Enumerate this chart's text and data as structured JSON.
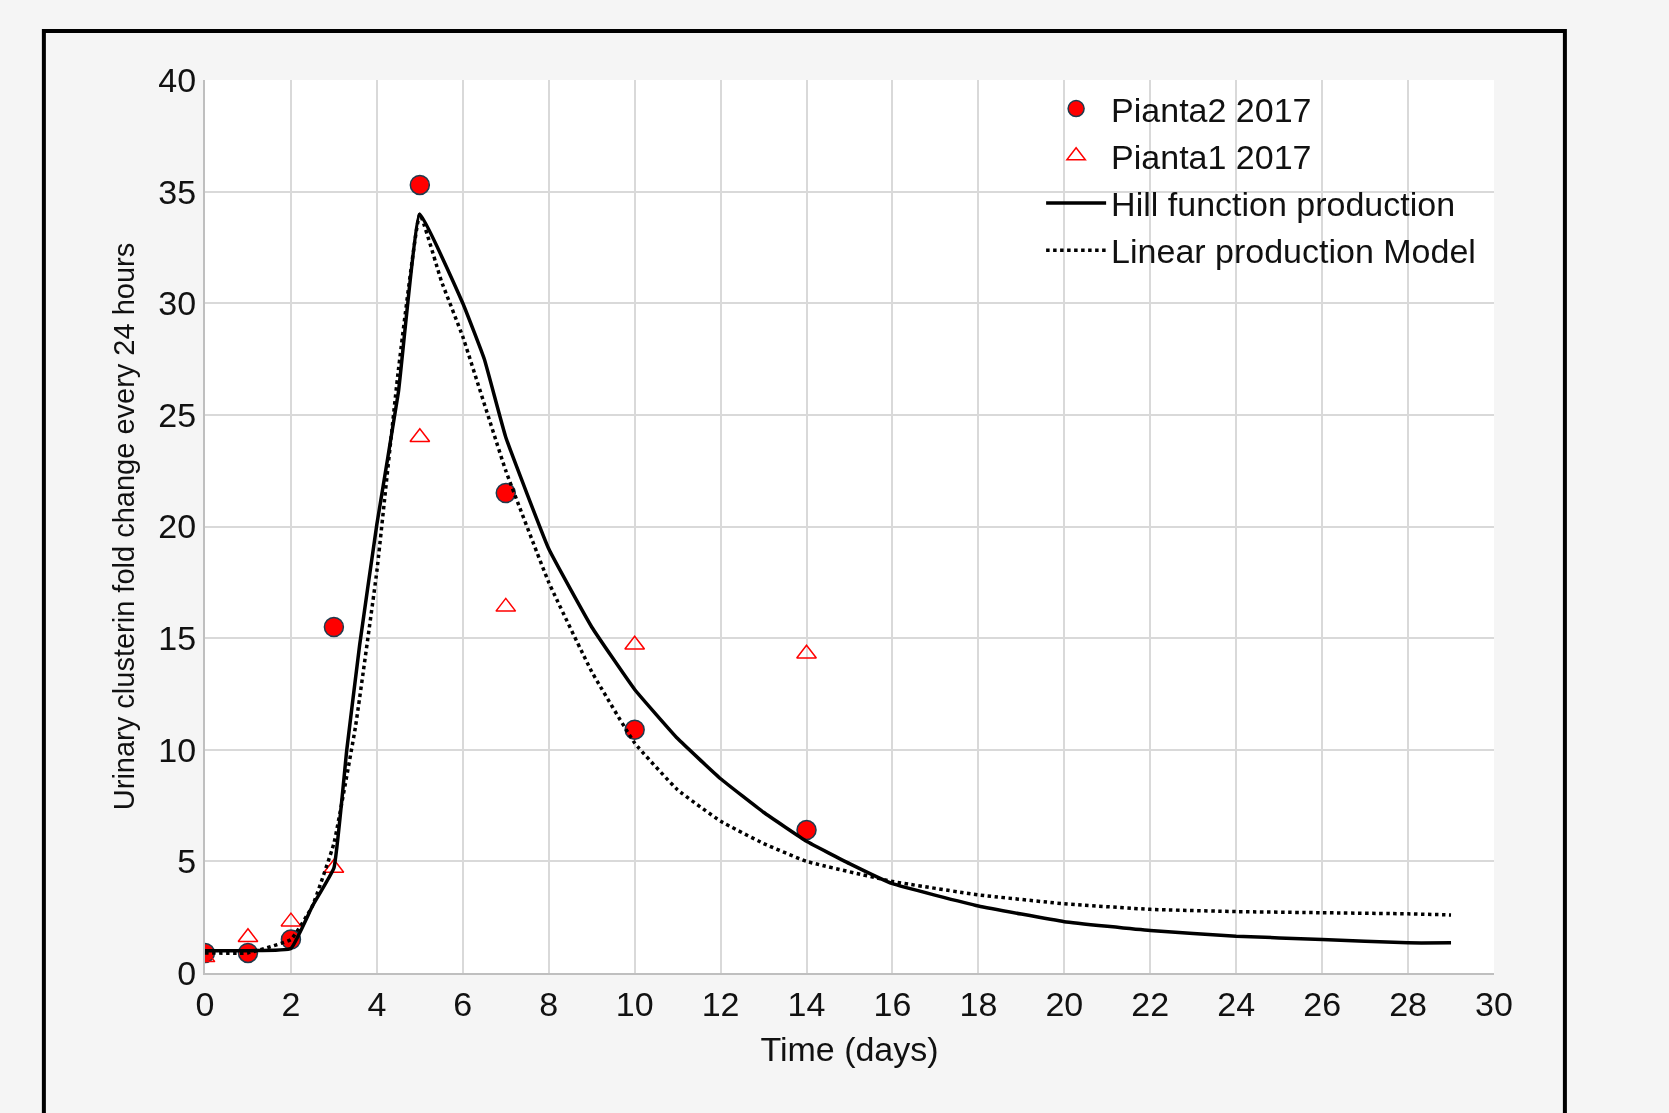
{
  "chart_data": {
    "type": "scatter",
    "xlabel": "Time (days)",
    "ylabel": "Urinary clusterin fold change every 24 hours",
    "xlim": [
      0,
      30
    ],
    "xticks": [
      0,
      2,
      4,
      6,
      8,
      10,
      12,
      14,
      16,
      18,
      20,
      22,
      24,
      26,
      28,
      30
    ],
    "ylim": [
      0,
      40
    ],
    "yticks": [
      0,
      5,
      10,
      15,
      20,
      25,
      30,
      35,
      40
    ],
    "grid": true,
    "legend": "top right",
    "series": [
      {
        "name": "Pianta2 2017",
        "marker": "circle",
        "color": "#ff0000",
        "x": [
          0,
          1,
          2,
          3,
          5,
          7,
          10,
          14
        ],
        "values": [
          0.9,
          0.9,
          1.5,
          15.5,
          35.3,
          21.5,
          10.9,
          6.4
        ]
      },
      {
        "name": "Pianta1 2017",
        "marker": "triangle",
        "color": "#ff0000",
        "x": [
          0,
          1,
          2,
          3,
          5,
          7,
          10,
          14
        ],
        "values": [
          0.7,
          1.6,
          2.3,
          4.7,
          24.0,
          16.4,
          14.7,
          14.3
        ]
      },
      {
        "name": "Hill function production",
        "type": "line",
        "line_style": "solid",
        "color": "#000000",
        "x": [
          0,
          1,
          2,
          2.5,
          3,
          3.3,
          3.6,
          4,
          4.5,
          5,
          6,
          6.5,
          7,
          8,
          9,
          10,
          11,
          12,
          13,
          14,
          15,
          16,
          18,
          20,
          22,
          24,
          26,
          28,
          29
        ],
        "values": [
          1.0,
          1.0,
          1.1,
          3,
          4.7,
          10,
          14.7,
          20.1,
          26,
          34,
          30,
          27.5,
          24,
          19,
          15.5,
          12.7,
          10.5,
          8.7,
          7.2,
          5.9,
          4.9,
          4.0,
          3.0,
          2.3,
          1.9,
          1.65,
          1.5,
          1.35,
          1.35
        ]
      },
      {
        "name": "Linear production Model",
        "type": "line",
        "line_style": "dotted",
        "color": "#000000",
        "x": [
          0,
          1,
          2,
          2.5,
          3,
          3.5,
          4,
          4.5,
          5,
          5.5,
          6,
          7,
          8,
          9,
          10,
          11,
          12,
          13,
          14,
          16,
          18,
          20,
          22,
          24,
          26,
          28,
          29
        ],
        "values": [
          0.9,
          0.9,
          1.5,
          3,
          5.8,
          11,
          18,
          27,
          34,
          31,
          28.5,
          22.5,
          17.5,
          13.5,
          10.3,
          8.2,
          6.8,
          5.8,
          5.0,
          4.1,
          3.5,
          3.1,
          2.85,
          2.75,
          2.7,
          2.65,
          2.6
        ]
      }
    ]
  }
}
